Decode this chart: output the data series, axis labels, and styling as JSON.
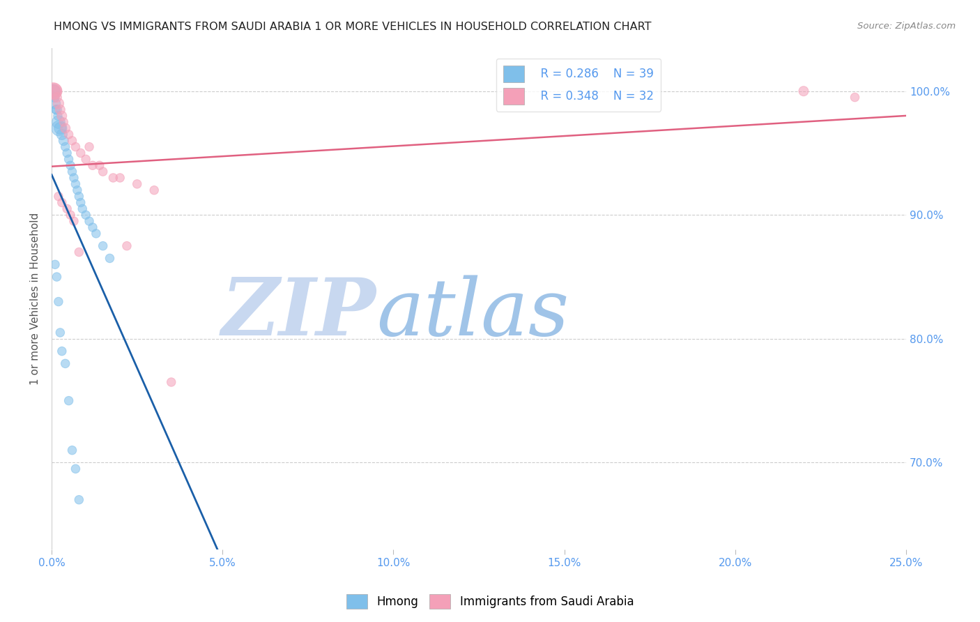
{
  "title": "HMONG VS IMMIGRANTS FROM SAUDI ARABIA 1 OR MORE VEHICLES IN HOUSEHOLD CORRELATION CHART",
  "source": "Source: ZipAtlas.com",
  "ylabel": "1 or more Vehicles in Household",
  "x_tick_labels": [
    "0.0%",
    "5.0%",
    "10.0%",
    "15.0%",
    "20.0%",
    "25.0%"
  ],
  "x_tick_values": [
    0.0,
    5.0,
    10.0,
    15.0,
    20.0,
    25.0
  ],
  "y_tick_labels": [
    "100.0%",
    "90.0%",
    "80.0%",
    "70.0%"
  ],
  "y_tick_values": [
    100.0,
    90.0,
    80.0,
    70.0
  ],
  "xlim": [
    0.0,
    25.0
  ],
  "ylim": [
    63.0,
    103.5
  ],
  "legend_r1": "R = 0.286",
  "legend_n1": "N = 39",
  "legend_r2": "R = 0.348",
  "legend_n2": "N = 32",
  "color_hmong": "#7fbfea",
  "color_saudi": "#f4a0b8",
  "color_hmong_line": "#1a5fa8",
  "color_saudi_line": "#e06080",
  "color_tick_label": "#5599ee",
  "watermark_zip": "ZIP",
  "watermark_atlas": "atlas",
  "watermark_color_zip": "#c8d8f0",
  "watermark_color_atlas": "#a0c4e8",
  "hmong_x": [
    0.05,
    0.07,
    0.08,
    0.1,
    0.12,
    0.15,
    0.18,
    0.2,
    0.22,
    0.25,
    0.3,
    0.35,
    0.4,
    0.45,
    0.5,
    0.55,
    0.6,
    0.65,
    0.7,
    0.75,
    0.8,
    0.85,
    0.9,
    1.0,
    1.1,
    1.2,
    1.3,
    1.5,
    1.7,
    0.1,
    0.15,
    0.2,
    0.25,
    0.3,
    0.4,
    0.5,
    0.6,
    0.7,
    0.8
  ],
  "hmong_y": [
    100.0,
    100.0,
    99.5,
    99.0,
    98.5,
    98.5,
    98.0,
    97.5,
    97.0,
    97.0,
    96.5,
    96.0,
    95.5,
    95.0,
    94.5,
    94.0,
    93.5,
    93.0,
    92.5,
    92.0,
    91.5,
    91.0,
    90.5,
    90.0,
    89.5,
    89.0,
    88.5,
    87.5,
    86.5,
    86.0,
    85.0,
    83.0,
    80.5,
    79.0,
    78.0,
    75.0,
    71.0,
    69.5,
    67.0
  ],
  "hmong_size": [
    200,
    150,
    100,
    120,
    80,
    100,
    80,
    180,
    250,
    150,
    120,
    100,
    80,
    80,
    80,
    80,
    80,
    80,
    80,
    80,
    80,
    80,
    80,
    80,
    80,
    80,
    80,
    80,
    80,
    80,
    80,
    80,
    80,
    80,
    80,
    80,
    80,
    80,
    80
  ],
  "saudi_x": [
    0.05,
    0.08,
    0.1,
    0.15,
    0.2,
    0.25,
    0.3,
    0.35,
    0.4,
    0.5,
    0.6,
    0.7,
    0.85,
    1.0,
    1.2,
    1.5,
    2.0,
    2.5,
    3.0,
    0.2,
    0.3,
    0.45,
    0.55,
    0.65,
    0.8,
    1.1,
    1.4,
    1.8,
    2.2,
    3.5,
    23.5,
    22.0
  ],
  "saudi_y": [
    100.0,
    100.0,
    100.0,
    99.5,
    99.0,
    98.5,
    98.0,
    97.5,
    97.0,
    96.5,
    96.0,
    95.5,
    95.0,
    94.5,
    94.0,
    93.5,
    93.0,
    92.5,
    92.0,
    91.5,
    91.0,
    90.5,
    90.0,
    89.5,
    87.0,
    95.5,
    94.0,
    93.0,
    87.5,
    76.5,
    99.5,
    100.0
  ],
  "saudi_size": [
    300,
    250,
    150,
    100,
    120,
    100,
    100,
    80,
    100,
    80,
    80,
    80,
    80,
    80,
    80,
    80,
    80,
    80,
    80,
    80,
    80,
    80,
    80,
    80,
    80,
    80,
    80,
    80,
    80,
    80,
    80,
    100
  ]
}
